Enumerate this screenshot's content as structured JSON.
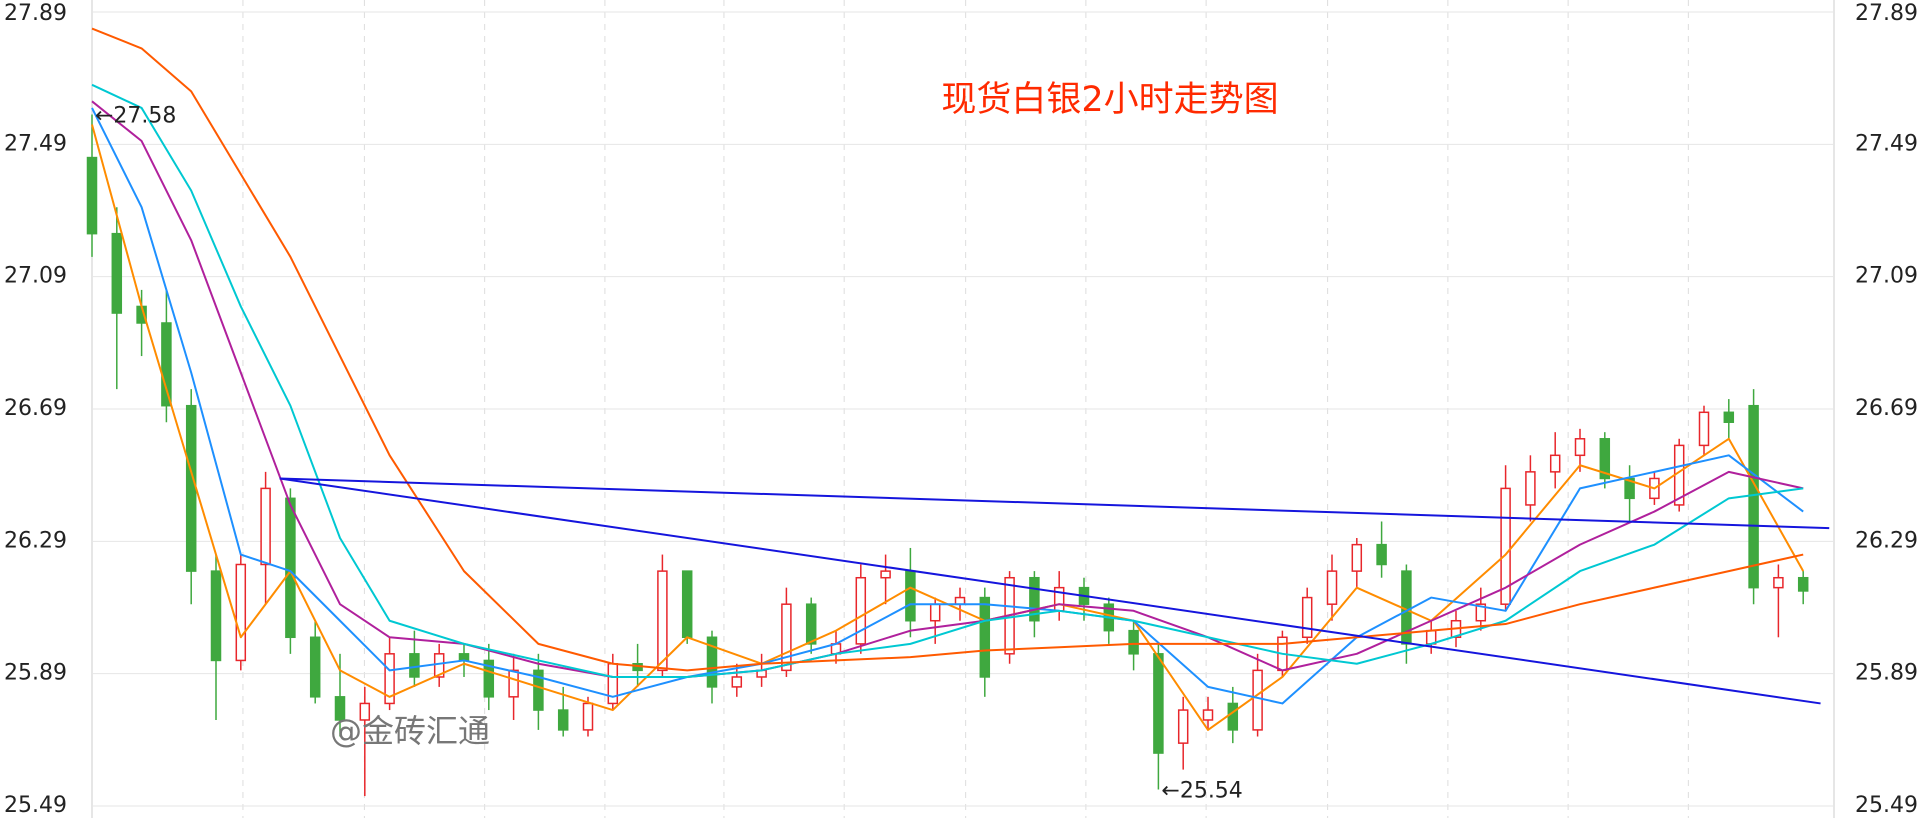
{
  "chart_data": {
    "type": "candlestick",
    "title": "现货白银2小时走势图",
    "watermark": "@金砖汇通",
    "ylim": [
      25.49,
      27.89
    ],
    "yticks": [
      25.49,
      25.89,
      26.29,
      26.69,
      27.09,
      27.49,
      27.89
    ],
    "grid": true,
    "up_color": "#e8262b",
    "down_color": "#3fa83f",
    "open": [
      27.45,
      27.22,
      27.0,
      26.95,
      26.7,
      26.2,
      25.93,
      26.22,
      26.42,
      26.0,
      25.82,
      25.75,
      25.8,
      25.95,
      25.88,
      25.95,
      25.93,
      25.82,
      25.9,
      25.78,
      25.72,
      25.8,
      25.92,
      25.9,
      26.2,
      26.0,
      25.85,
      25.88,
      25.9,
      26.1,
      25.95,
      25.98,
      26.18,
      26.2,
      26.05,
      26.1,
      26.12,
      25.95,
      26.18,
      26.08,
      26.15,
      26.1,
      26.02,
      25.95,
      25.68,
      25.75,
      25.8,
      25.72,
      25.9,
      26.0,
      26.1,
      26.2,
      26.28,
      26.2,
      25.98,
      26.0,
      26.05,
      26.1,
      26.4,
      26.5,
      26.55,
      26.6,
      26.48,
      26.42,
      26.4,
      26.58,
      26.68,
      26.7,
      26.15,
      26.18
    ],
    "high": [
      27.58,
      27.3,
      27.05,
      27.05,
      26.75,
      26.25,
      26.25,
      26.5,
      26.45,
      26.05,
      25.95,
      25.85,
      26.0,
      26.02,
      25.98,
      25.98,
      25.98,
      25.95,
      25.95,
      25.85,
      25.82,
      25.95,
      25.98,
      26.25,
      26.2,
      26.02,
      25.92,
      25.95,
      26.15,
      26.12,
      26.02,
      26.22,
      26.25,
      26.27,
      26.12,
      26.15,
      26.15,
      26.2,
      26.2,
      26.2,
      26.18,
      26.12,
      26.05,
      25.98,
      25.82,
      25.82,
      25.85,
      25.95,
      26.02,
      26.15,
      26.25,
      26.3,
      26.35,
      26.22,
      26.05,
      26.08,
      26.15,
      26.52,
      26.55,
      26.62,
      26.63,
      26.62,
      26.52,
      26.5,
      26.6,
      26.7,
      26.72,
      26.75,
      26.22,
      26.2
    ],
    "low": [
      27.15,
      26.75,
      26.85,
      26.65,
      26.1,
      25.75,
      25.9,
      26.1,
      25.95,
      25.8,
      25.7,
      25.52,
      25.78,
      25.85,
      25.85,
      25.88,
      25.78,
      25.75,
      25.72,
      25.7,
      25.7,
      25.78,
      25.85,
      25.88,
      25.98,
      25.8,
      25.82,
      25.85,
      25.88,
      25.95,
      25.92,
      25.95,
      26.1,
      26.0,
      25.98,
      26.05,
      25.82,
      25.92,
      26.0,
      26.05,
      26.05,
      25.98,
      25.9,
      25.54,
      25.6,
      25.72,
      25.68,
      25.7,
      25.88,
      25.98,
      26.05,
      26.15,
      26.18,
      25.92,
      25.95,
      25.97,
      26.02,
      26.08,
      26.35,
      26.45,
      26.5,
      26.45,
      26.35,
      26.4,
      26.38,
      26.55,
      26.6,
      26.1,
      26.0,
      26.1
    ],
    "close": [
      27.22,
      26.98,
      26.95,
      26.7,
      26.2,
      25.93,
      26.22,
      26.45,
      26.0,
      25.82,
      25.75,
      25.8,
      25.95,
      25.88,
      25.95,
      25.93,
      25.82,
      25.9,
      25.78,
      25.72,
      25.8,
      25.92,
      25.9,
      26.2,
      26.0,
      25.85,
      25.88,
      25.9,
      26.1,
      25.98,
      25.98,
      26.18,
      26.2,
      26.05,
      26.1,
      26.12,
      25.88,
      26.18,
      26.05,
      26.15,
      26.1,
      26.02,
      25.95,
      25.65,
      25.78,
      25.78,
      25.72,
      25.9,
      26.0,
      26.12,
      26.2,
      26.28,
      26.22,
      25.98,
      26.02,
      26.05,
      26.1,
      26.45,
      26.5,
      26.55,
      26.6,
      26.48,
      26.42,
      26.48,
      26.58,
      26.68,
      26.65,
      26.15,
      26.18,
      26.14
    ],
    "series": [
      {
        "color": "#ff8c00",
        "x": [
          0,
          2,
          4,
          6,
          8,
          10,
          12,
          15,
          18,
          21,
          24,
          27,
          30,
          33,
          36,
          39,
          42,
          45,
          48,
          51,
          54,
          57,
          60,
          63,
          66,
          69
        ],
        "values": [
          27.55,
          27.0,
          26.5,
          26.0,
          26.2,
          25.9,
          25.82,
          25.92,
          25.85,
          25.78,
          26.0,
          25.92,
          26.02,
          26.15,
          26.05,
          26.1,
          26.05,
          25.72,
          25.88,
          26.15,
          26.05,
          26.25,
          26.52,
          26.45,
          26.6,
          26.2
        ]
      },
      {
        "color": "#1e90ff",
        "x": [
          0,
          2,
          4,
          6,
          8,
          10,
          12,
          15,
          18,
          21,
          24,
          27,
          30,
          33,
          36,
          39,
          42,
          45,
          48,
          51,
          54,
          57,
          60,
          63,
          66,
          69
        ],
        "values": [
          27.6,
          27.3,
          26.8,
          26.25,
          26.2,
          26.05,
          25.9,
          25.93,
          25.88,
          25.82,
          25.88,
          25.92,
          25.98,
          26.1,
          26.1,
          26.08,
          26.05,
          25.85,
          25.8,
          26.0,
          26.12,
          26.08,
          26.45,
          26.5,
          26.55,
          26.38
        ]
      },
      {
        "color": "#b0209c",
        "x": [
          0,
          2,
          4,
          6,
          8,
          10,
          12,
          15,
          18,
          21,
          24,
          27,
          30,
          33,
          36,
          39,
          42,
          45,
          48,
          51,
          54,
          57,
          60,
          63,
          66,
          69
        ],
        "values": [
          27.62,
          27.5,
          27.2,
          26.8,
          26.4,
          26.1,
          26.0,
          25.98,
          25.92,
          25.88,
          25.88,
          25.9,
          25.95,
          26.02,
          26.05,
          26.1,
          26.08,
          26.0,
          25.9,
          25.95,
          26.05,
          26.15,
          26.28,
          26.38,
          26.5,
          26.45
        ]
      },
      {
        "color": "#00c8d2",
        "x": [
          0,
          2,
          4,
          6,
          8,
          10,
          12,
          15,
          18,
          21,
          24,
          27,
          30,
          33,
          36,
          39,
          42,
          45,
          48,
          51,
          54,
          57,
          60,
          63,
          66,
          69
        ],
        "values": [
          27.67,
          27.6,
          27.35,
          27.0,
          26.7,
          26.3,
          26.05,
          25.98,
          25.93,
          25.88,
          25.88,
          25.9,
          25.95,
          25.98,
          26.05,
          26.08,
          26.05,
          26.0,
          25.95,
          25.92,
          25.98,
          26.05,
          26.2,
          26.28,
          26.42,
          26.45
        ]
      },
      {
        "color": "#ff5a00",
        "x": [
          0,
          2,
          4,
          6,
          8,
          10,
          12,
          15,
          18,
          21,
          24,
          27,
          30,
          33,
          36,
          39,
          42,
          45,
          48,
          51,
          54,
          57,
          60,
          63,
          66,
          69
        ],
        "values": [
          27.84,
          27.78,
          27.65,
          27.4,
          27.15,
          26.85,
          26.55,
          26.2,
          25.98,
          25.92,
          25.9,
          25.92,
          25.93,
          25.94,
          25.96,
          25.97,
          25.98,
          25.98,
          25.98,
          26.0,
          26.02,
          26.04,
          26.1,
          26.15,
          26.2,
          26.25
        ]
      }
    ],
    "trendlines": [
      {
        "color": "#1515dd",
        "x": [
          7.57,
          70.05
        ],
        "values": [
          26.48,
          26.33
        ]
      },
      {
        "color": "#1515dd",
        "x": [
          7.57,
          69.7
        ],
        "values": [
          26.48,
          25.8
        ]
      }
    ],
    "annotations": [
      {
        "text": "←27.58",
        "x": 0,
        "value": 27.58
      },
      {
        "text": "←25.54",
        "x": 43,
        "value": 25.54
      }
    ]
  }
}
